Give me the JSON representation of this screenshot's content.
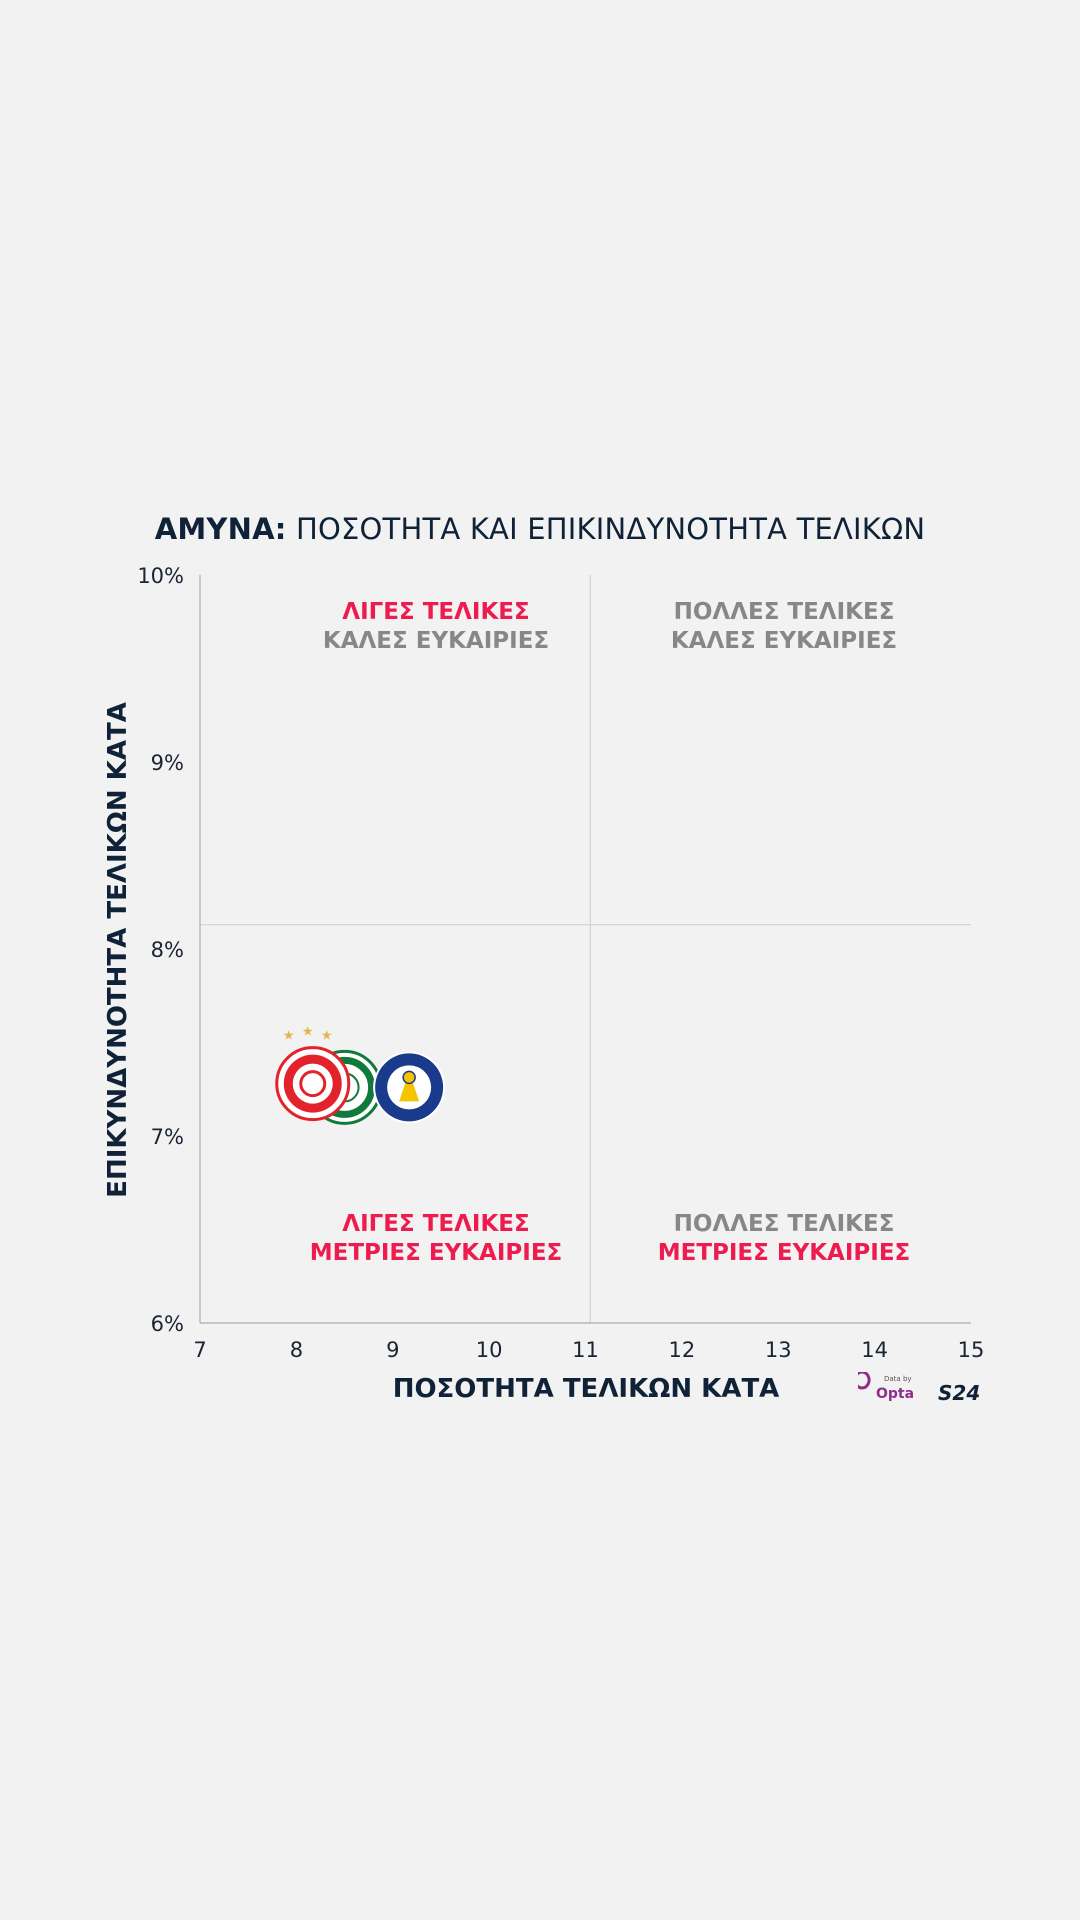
{
  "title": {
    "bold": "ΑΜΥΝΑ:",
    "rest": " ΠΟΣΟΤΗΤΑ ΚΑΙ ΕΠΙΚΙΝΔΥΝΟΤΗΤΑ ΤΕΛΙΚΩΝ"
  },
  "brand": {
    "data_by": "Data by",
    "opta": "Opta",
    "s24": "S24",
    "accent": "#ee1c4e"
  },
  "colors": {
    "red": "#ee1c4e",
    "grey": "#878787",
    "navy": "#0f2237",
    "grid": "#cfd3d6",
    "axis": "#a9adb2"
  },
  "chart_data": {
    "type": "scatter",
    "xlabel": "ΠΟΣΟΤΗΤΑ ΤΕΛΙΚΩΝ ΚΑΤΑ",
    "ylabel": "ΕΠΙΚΥΝΔΥΝΟΤΗΤΑ ΤΕΛΙΚΩΝ ΚΑΤΑ",
    "xlim": [
      7,
      15
    ],
    "ylim": [
      6,
      10
    ],
    "xticks": [
      "7",
      "8",
      "9",
      "10",
      "11",
      "12",
      "13",
      "14",
      "15"
    ],
    "yticks": [
      "6%",
      "7%",
      "8%",
      "9%",
      "10%"
    ],
    "reference_lines": {
      "x": 11.05,
      "y": 8.13
    },
    "quadrants": [
      {
        "position": "top-left",
        "line1": "ΛΙΓΕΣ ΤΕΛΙΚΕΣ",
        "line2": "ΚΑΛΕΣ ΕΥΚΑΙΡΙΕΣ",
        "color1": "#ee1c4e",
        "color2": "#878787"
      },
      {
        "position": "top-right",
        "line1": "ΠΟΛΛΕΣ ΤΕΛΙΚΕΣ",
        "line2": "ΚΑΛΕΣ ΕΥΚΑΙΡΙΕΣ",
        "color1": "#878787",
        "color2": "#878787"
      },
      {
        "position": "bottom-left",
        "line1": "ΛΙΓΕΣ ΤΕΛΙΚΕΣ",
        "line2": "ΜΕΤΡΙΕΣ ΕΥΚΑΙΡΙΕΣ",
        "color1": "#ee1c4e",
        "color2": "#ee1c4e"
      },
      {
        "position": "bottom-right",
        "line1": "ΠΟΛΛΕΣ ΤΕΛΙΚΕΣ",
        "line2": "ΜΕΤΡΙΕΣ ΕΥΚΑΙΡΙΕΣ",
        "color1": "#878787",
        "color2": "#ee1c4e"
      }
    ],
    "points": [
      {
        "team": "Panathinaikos",
        "icon": "panathinaikos-crest-icon",
        "x": 8.5,
        "y": 7.26,
        "color": "#0f7a3c"
      },
      {
        "team": "Olympiacos",
        "icon": "olympiacos-crest-icon",
        "x": 8.17,
        "y": 7.28,
        "color": "#e3232b"
      },
      {
        "team": "Asteras Tripolis",
        "icon": "asteras-tripolis-crest-icon",
        "x": 9.17,
        "y": 7.26,
        "color": "#1a3a8c"
      }
    ]
  }
}
